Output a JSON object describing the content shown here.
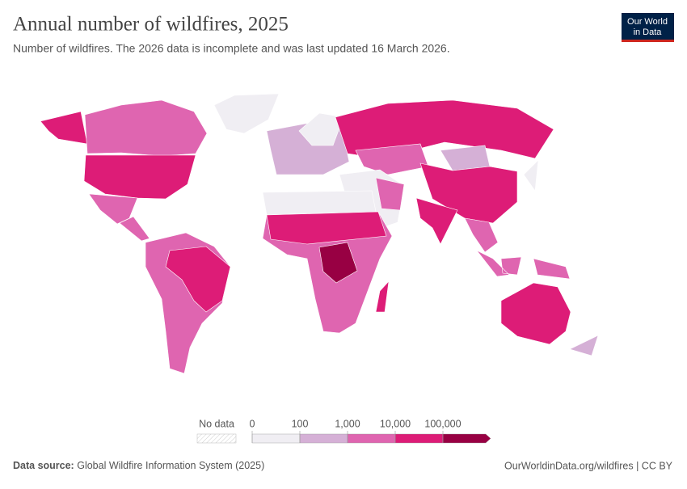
{
  "header": {
    "title": "Annual number of wildfires, 2025",
    "subtitle": "Number of wildfires. The 2026 data is incomplete and was last updated 16 March 2026.",
    "logo": [
      "Our World",
      "in Data"
    ]
  },
  "legend": {
    "no_data": "No data",
    "ticks": [
      0,
      100,
      {
        "value": 1000,
        "label": "1,000"
      },
      {
        "value": 10000,
        "label": "10,000"
      },
      {
        "value": 100000,
        "label": "100,000"
      }
    ],
    "colors": [
      "#f0eef3",
      "#d5b0d6",
      "#df65b0",
      "#dd1c77",
      "#980043"
    ]
  },
  "footer": {
    "source_label": "Data source:",
    "source": "Global Wildfire Information System (2025)",
    "link": "OurWorldinData.org/wildfires | CC BY"
  }
}
